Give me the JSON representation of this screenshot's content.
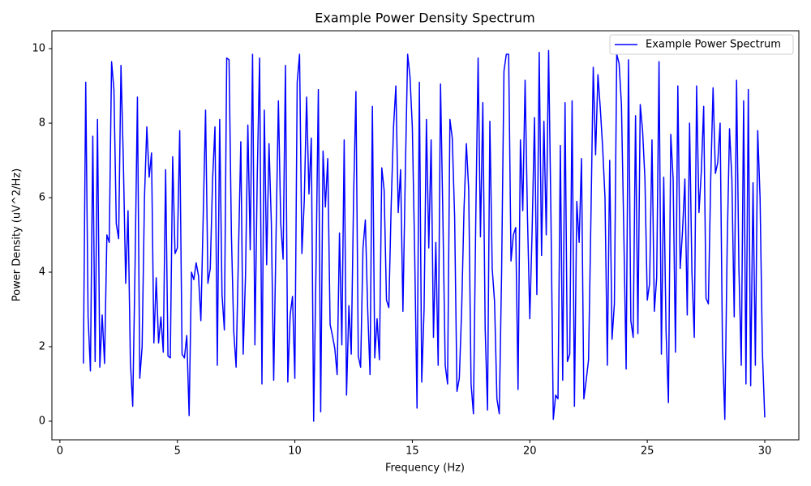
{
  "chart_data": {
    "type": "line",
    "title": "Example Power Density Spectrum",
    "xlabel": "Frequency (Hz)",
    "ylabel": "Power Density (uV^2/Hz)",
    "x": [
      1.0,
      1.1,
      1.2,
      1.3,
      1.4,
      1.5,
      1.6,
      1.7,
      1.8,
      1.9,
      2.0,
      2.1,
      2.2,
      2.3,
      2.4,
      2.5,
      2.6,
      2.7,
      2.8,
      2.9,
      3.0,
      3.1,
      3.2,
      3.3,
      3.4,
      3.5,
      3.6,
      3.7,
      3.8,
      3.9,
      4.0,
      4.1,
      4.2,
      4.3,
      4.4,
      4.5,
      4.6,
      4.7,
      4.8,
      4.9,
      5.0,
      5.1,
      5.2,
      5.3,
      5.4,
      5.5,
      5.6,
      5.7,
      5.8,
      5.9,
      6.0,
      6.1,
      6.2,
      6.3,
      6.4,
      6.5,
      6.6,
      6.7,
      6.8,
      6.9,
      7.0,
      7.1,
      7.2,
      7.3,
      7.4,
      7.5,
      7.6,
      7.7,
      7.8,
      7.9,
      8.0,
      8.1,
      8.2,
      8.3,
      8.4,
      8.5,
      8.6,
      8.7,
      8.8,
      8.9,
      9.0,
      9.1,
      9.2,
      9.3,
      9.4,
      9.5,
      9.6,
      9.7,
      9.8,
      9.9,
      10.0,
      10.1,
      10.2,
      10.3,
      10.4,
      10.5,
      10.6,
      10.7,
      10.8,
      10.9,
      11.0,
      11.1,
      11.2,
      11.3,
      11.4,
      11.5,
      11.6,
      11.7,
      11.8,
      11.9,
      12.0,
      12.1,
      12.2,
      12.3,
      12.4,
      12.5,
      12.6,
      12.7,
      12.8,
      12.9,
      13.0,
      13.1,
      13.2,
      13.3,
      13.4,
      13.5,
      13.6,
      13.7,
      13.8,
      13.9,
      14.0,
      14.1,
      14.2,
      14.3,
      14.4,
      14.5,
      14.6,
      14.7,
      14.8,
      14.9,
      15.0,
      15.1,
      15.2,
      15.3,
      15.4,
      15.5,
      15.6,
      15.7,
      15.8,
      15.9,
      16.0,
      16.1,
      16.2,
      16.3,
      16.4,
      16.5,
      16.6,
      16.7,
      16.8,
      16.9,
      17.0,
      17.1,
      17.2,
      17.3,
      17.4,
      17.5,
      17.6,
      17.7,
      17.8,
      17.9,
      18.0,
      18.1,
      18.2,
      18.3,
      18.4,
      18.5,
      18.6,
      18.7,
      18.8,
      18.9,
      19.0,
      19.1,
      19.2,
      19.3,
      19.4,
      19.5,
      19.6,
      19.7,
      19.8,
      19.9,
      20.0,
      20.1,
      20.2,
      20.3,
      20.4,
      20.5,
      20.6,
      20.7,
      20.8,
      20.9,
      21.0,
      21.1,
      21.2,
      21.3,
      21.4,
      21.5,
      21.6,
      21.7,
      21.8,
      21.9,
      22.0,
      22.1,
      22.2,
      22.3,
      22.4,
      22.5,
      22.6,
      22.7,
      22.8,
      22.9,
      23.0,
      23.1,
      23.2,
      23.3,
      23.4,
      23.5,
      23.6,
      23.7,
      23.8,
      23.9,
      24.0,
      24.1,
      24.2,
      24.3,
      24.4,
      24.5,
      24.6,
      24.7,
      24.8,
      24.9,
      25.0,
      25.1,
      25.2,
      25.3,
      25.4,
      25.5,
      25.6,
      25.7,
      25.8,
      25.9,
      26.0,
      26.1,
      26.2,
      26.3,
      26.4,
      26.5,
      26.6,
      26.7,
      26.8,
      26.9,
      27.0,
      27.1,
      27.2,
      27.3,
      27.4,
      27.5,
      27.6,
      27.7,
      27.8,
      27.9,
      28.0,
      28.1,
      28.2,
      28.3,
      28.4,
      28.5,
      28.6,
      28.7,
      28.8,
      28.9,
      29.0,
      29.1,
      29.2,
      29.3,
      29.4,
      29.5,
      29.6,
      29.7,
      29.8,
      29.9,
      30.0
    ],
    "series": [
      {
        "name": "Example Power Spectrum",
        "color": "#0000ff",
        "values": [
          1.55,
          9.1,
          2.8,
          1.35,
          7.65,
          1.6,
          8.1,
          1.45,
          2.85,
          1.55,
          5.0,
          4.8,
          9.65,
          8.9,
          5.3,
          4.9,
          9.55,
          7.0,
          3.7,
          5.65,
          1.6,
          0.4,
          4.2,
          8.7,
          1.15,
          2.0,
          6.0,
          7.9,
          6.55,
          7.2,
          2.1,
          3.85,
          2.1,
          2.8,
          1.85,
          6.75,
          1.75,
          1.7,
          7.1,
          4.5,
          4.65,
          7.8,
          1.8,
          1.7,
          2.3,
          0.15,
          4.0,
          3.8,
          4.25,
          3.9,
          2.7,
          5.5,
          8.35,
          3.7,
          4.1,
          6.5,
          7.9,
          1.5,
          8.1,
          3.4,
          2.45,
          9.75,
          9.7,
          5.0,
          2.4,
          1.45,
          4.5,
          7.5,
          1.8,
          3.9,
          7.95,
          4.6,
          9.85,
          2.05,
          6.6,
          9.75,
          1.0,
          8.35,
          4.2,
          7.45,
          5.3,
          1.1,
          5.0,
          8.6,
          5.3,
          4.35,
          9.55,
          1.05,
          2.85,
          3.35,
          1.15,
          9.1,
          9.85,
          4.5,
          5.9,
          8.7,
          6.1,
          7.6,
          0.0,
          4.1,
          8.9,
          0.25,
          7.25,
          5.75,
          7.05,
          2.6,
          2.3,
          1.95,
          1.25,
          5.05,
          2.05,
          7.55,
          0.7,
          3.1,
          1.8,
          6.0,
          8.85,
          1.75,
          1.45,
          4.65,
          5.4,
          3.0,
          1.25,
          8.45,
          1.7,
          2.75,
          1.65,
          6.8,
          6.2,
          3.25,
          3.05,
          5.8,
          7.9,
          9.0,
          5.6,
          6.75,
          2.95,
          6.6,
          9.85,
          9.25,
          7.9,
          4.5,
          0.35,
          9.1,
          1.05,
          3.0,
          8.1,
          4.65,
          7.55,
          2.25,
          4.8,
          1.5,
          9.05,
          5.5,
          1.5,
          1.0,
          8.1,
          7.6,
          5.5,
          0.8,
          1.15,
          3.0,
          5.7,
          7.45,
          6.2,
          1.0,
          0.2,
          5.4,
          9.75,
          4.95,
          8.55,
          2.5,
          0.3,
          8.05,
          4.1,
          3.2,
          0.6,
          0.2,
          4.0,
          9.4,
          9.85,
          9.85,
          4.3,
          5.0,
          5.2,
          0.85,
          7.55,
          5.65,
          9.15,
          5.5,
          2.75,
          5.15,
          8.15,
          3.4,
          9.9,
          4.45,
          8.05,
          5.0,
          9.95,
          5.5,
          0.05,
          0.7,
          0.6,
          7.4,
          1.1,
          8.55,
          1.6,
          1.8,
          8.6,
          0.4,
          5.9,
          4.8,
          7.05,
          0.6,
          1.1,
          1.65,
          5.4,
          9.5,
          7.15,
          9.3,
          8.4,
          7.35,
          6.0,
          1.5,
          7.0,
          2.2,
          3.15,
          9.85,
          9.6,
          8.5,
          5.1,
          1.4,
          9.7,
          2.7,
          2.25,
          8.2,
          2.35,
          8.5,
          7.8,
          6.5,
          3.25,
          3.7,
          7.55,
          2.95,
          3.85,
          9.65,
          1.8,
          6.55,
          2.4,
          0.5,
          7.7,
          6.5,
          1.85,
          9.0,
          4.1,
          5.1,
          6.5,
          2.85,
          8.0,
          4.0,
          2.25,
          9.0,
          5.6,
          6.7,
          8.45,
          3.3,
          3.15,
          6.5,
          8.95,
          6.65,
          6.95,
          8.0,
          2.0,
          0.05,
          4.7,
          7.85,
          6.5,
          2.8,
          9.15,
          4.1,
          1.5,
          8.6,
          1.0,
          8.9,
          0.95,
          6.4,
          1.5,
          7.8,
          6.0,
          1.85,
          0.1
        ]
      }
    ],
    "xlim": [
      -0.34,
      31.45
    ],
    "xticks": [
      0,
      5,
      10,
      15,
      20,
      25,
      30
    ],
    "ylim": [
      -0.5,
      10.48
    ],
    "yticks": [
      0,
      2,
      4,
      6,
      8,
      10
    ],
    "grid": false,
    "legend": "upper right"
  }
}
